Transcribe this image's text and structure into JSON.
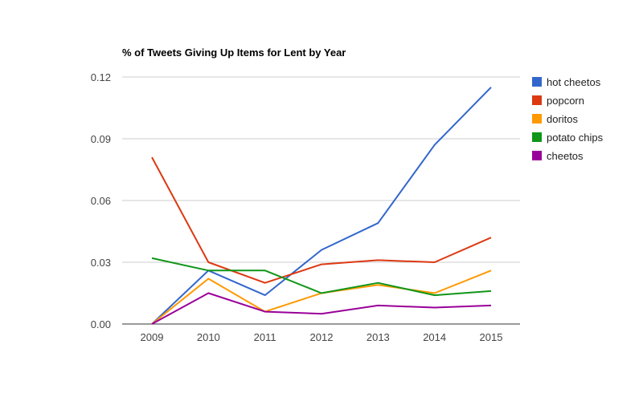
{
  "chart_data": {
    "type": "line",
    "title": "% of Tweets Giving Up Items for Lent by Year",
    "xlabel": "",
    "ylabel": "",
    "x": [
      "2009",
      "2010",
      "2011",
      "2012",
      "2013",
      "2014",
      "2015"
    ],
    "ylim": [
      0,
      0.12
    ],
    "yticks": [
      "0.00",
      "0.03",
      "0.06",
      "0.09",
      "0.12"
    ],
    "grid": true,
    "legend_position": "right",
    "series": [
      {
        "name": "hot cheetos",
        "color": "#3366cc",
        "values": [
          0.0,
          0.026,
          0.014,
          0.036,
          0.049,
          0.087,
          0.115
        ]
      },
      {
        "name": "popcorn",
        "color": "#dc3912",
        "values": [
          0.081,
          0.03,
          0.02,
          0.029,
          0.031,
          0.03,
          0.042
        ]
      },
      {
        "name": "doritos",
        "color": "#ff9900",
        "values": [
          0.0,
          0.022,
          0.006,
          0.015,
          0.019,
          0.015,
          0.026
        ]
      },
      {
        "name": "potato chips",
        "color": "#109618",
        "values": [
          0.032,
          0.026,
          0.026,
          0.015,
          0.02,
          0.014,
          0.016
        ]
      },
      {
        "name": "cheetos",
        "color": "#990099",
        "values": [
          0.0,
          0.015,
          0.006,
          0.005,
          0.009,
          0.008,
          0.009
        ]
      }
    ]
  }
}
